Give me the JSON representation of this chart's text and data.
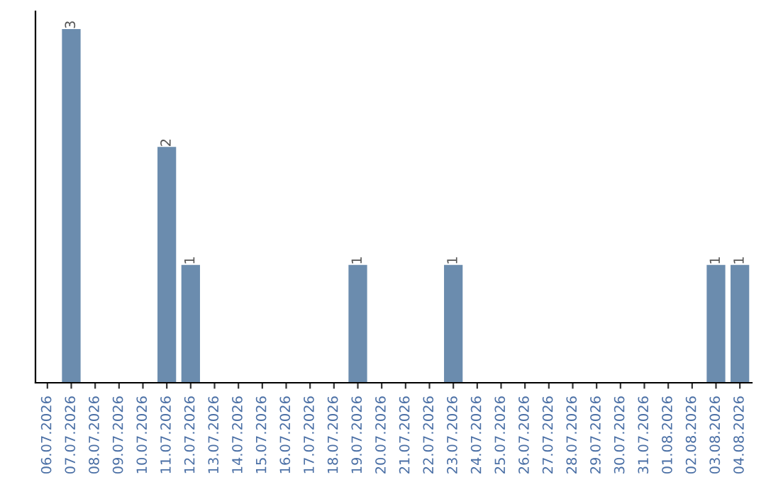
{
  "chart_data": {
    "type": "bar",
    "categories": [
      "06.07.2026",
      "07.07.2026",
      "08.07.2026",
      "09.07.2026",
      "10.07.2026",
      "11.07.2026",
      "12.07.2026",
      "13.07.2026",
      "14.07.2026",
      "15.07.2026",
      "16.07.2026",
      "17.07.2026",
      "18.07.2026",
      "19.07.2026",
      "20.07.2026",
      "21.07.2026",
      "22.07.2026",
      "23.07.2026",
      "24.07.2026",
      "25.07.2026",
      "26.07.2026",
      "27.07.2026",
      "28.07.2026",
      "29.07.2026",
      "30.07.2026",
      "31.07.2026",
      "01.08.2026",
      "02.08.2026",
      "03.08.2026",
      "04.08.2026"
    ],
    "values": [
      0,
      3,
      0,
      0,
      0,
      2,
      1,
      0,
      0,
      0,
      0,
      0,
      0,
      1,
      0,
      0,
      0,
      1,
      0,
      0,
      0,
      0,
      0,
      0,
      0,
      0,
      0,
      0,
      1,
      1
    ],
    "value_labels": [
      null,
      "3",
      null,
      null,
      null,
      "2",
      "1",
      null,
      null,
      null,
      null,
      null,
      null,
      "1",
      null,
      null,
      null,
      "1",
      null,
      null,
      null,
      null,
      null,
      null,
      null,
      null,
      null,
      null,
      "1",
      "1"
    ],
    "color": "#6b8cae",
    "tick_labels": "x",
    "grid": false
  }
}
